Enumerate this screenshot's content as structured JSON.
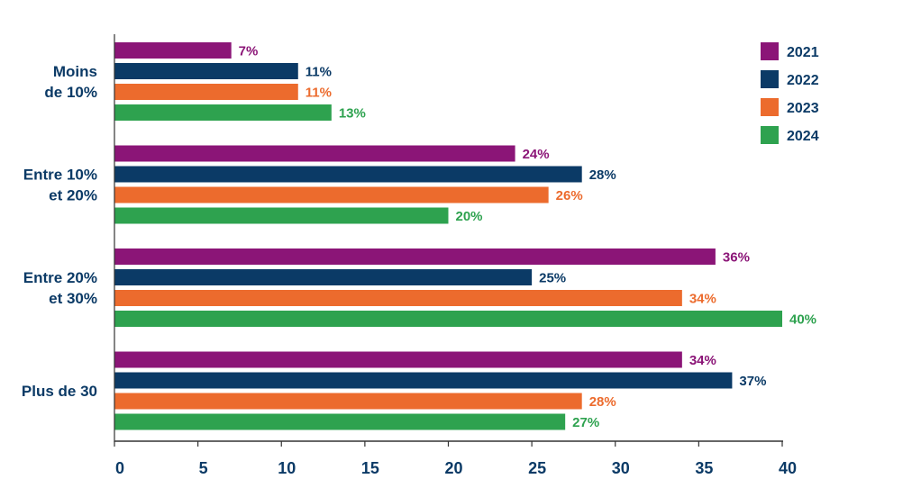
{
  "chart_data": {
    "type": "bar",
    "orientation": "horizontal",
    "categories": [
      [
        "Moins",
        "de 10%"
      ],
      [
        "Entre 10%",
        "et 20%"
      ],
      [
        "Entre 20%",
        "et 30%"
      ],
      [
        "Plus de 30"
      ]
    ],
    "series": [
      {
        "name": "2021",
        "color": "#8b1577",
        "values": [
          7,
          24,
          36,
          34
        ],
        "labels": [
          "7%",
          "24%",
          "36%",
          "34%"
        ]
      },
      {
        "name": "2022",
        "color": "#0b3a66",
        "values": [
          11,
          28,
          25,
          37
        ],
        "labels": [
          "11%",
          "28%",
          "25%",
          "37%"
        ]
      },
      {
        "name": "2023",
        "color": "#ec6b2d",
        "values": [
          11,
          26,
          34,
          28
        ],
        "labels": [
          "11%",
          "26%",
          "34%",
          "28%"
        ]
      },
      {
        "name": "2024",
        "color": "#2ea24f",
        "values": [
          13,
          20,
          40,
          27
        ],
        "labels": [
          "13%",
          "20%",
          "40%",
          "27%"
        ]
      }
    ],
    "xlim": [
      0,
      40
    ],
    "xticks": [
      0,
      5,
      10,
      15,
      20,
      25,
      30,
      35,
      40
    ],
    "title": "",
    "xlabel": "",
    "ylabel": "",
    "grid": false,
    "legend_position": "top-right"
  }
}
